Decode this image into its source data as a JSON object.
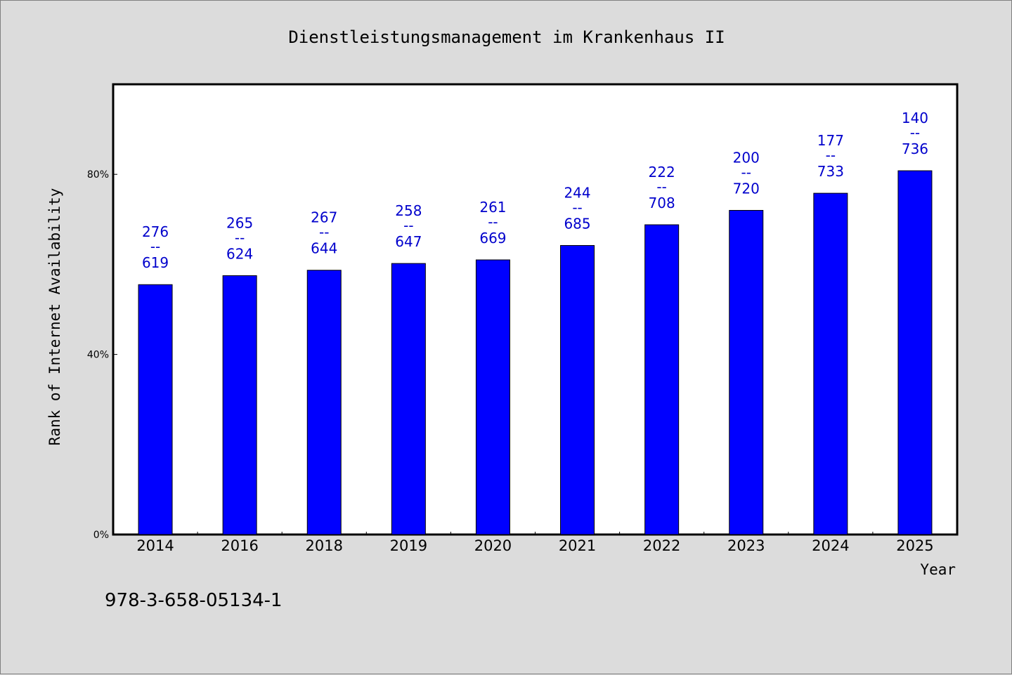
{
  "chart_data": {
    "type": "bar",
    "title": "Dienstleistungsmanagement im Krankenhaus II",
    "xlabel": "Year",
    "ylabel": "Rank of Internet Availability",
    "categories": [
      "2014",
      "2016",
      "2018",
      "2019",
      "2020",
      "2021",
      "2022",
      "2023",
      "2024",
      "2025"
    ],
    "values": [
      55.5,
      57.5,
      58.7,
      60.2,
      61.0,
      64.2,
      68.8,
      72.0,
      75.8,
      80.8
    ],
    "data_labels": [
      {
        "top": "276",
        "sep": "--",
        "bottom": "619"
      },
      {
        "top": "265",
        "sep": "--",
        "bottom": "624"
      },
      {
        "top": "267",
        "sep": "--",
        "bottom": "644"
      },
      {
        "top": "258",
        "sep": "--",
        "bottom": "647"
      },
      {
        "top": "261",
        "sep": "--",
        "bottom": "669"
      },
      {
        "top": "244",
        "sep": "--",
        "bottom": "685"
      },
      {
        "top": "222",
        "sep": "--",
        "bottom": "708"
      },
      {
        "top": "200",
        "sep": "--",
        "bottom": "720"
      },
      {
        "top": "177",
        "sep": "--",
        "bottom": "733"
      },
      {
        "top": "140",
        "sep": "--",
        "bottom": "736"
      }
    ],
    "ylim": [
      0,
      100
    ],
    "yticks": [
      {
        "value": 0,
        "label": "0%"
      },
      {
        "value": 40,
        "label": "40%"
      },
      {
        "value": 80,
        "label": "80%"
      }
    ],
    "grid": false,
    "legend": "none",
    "bar_color": "#0000ff",
    "label_color": "#0000cc",
    "background_color": "#dcdcdc",
    "plot_background_color": "#ffffff"
  },
  "footer": {
    "isbn": "978-3-658-05134-1"
  }
}
